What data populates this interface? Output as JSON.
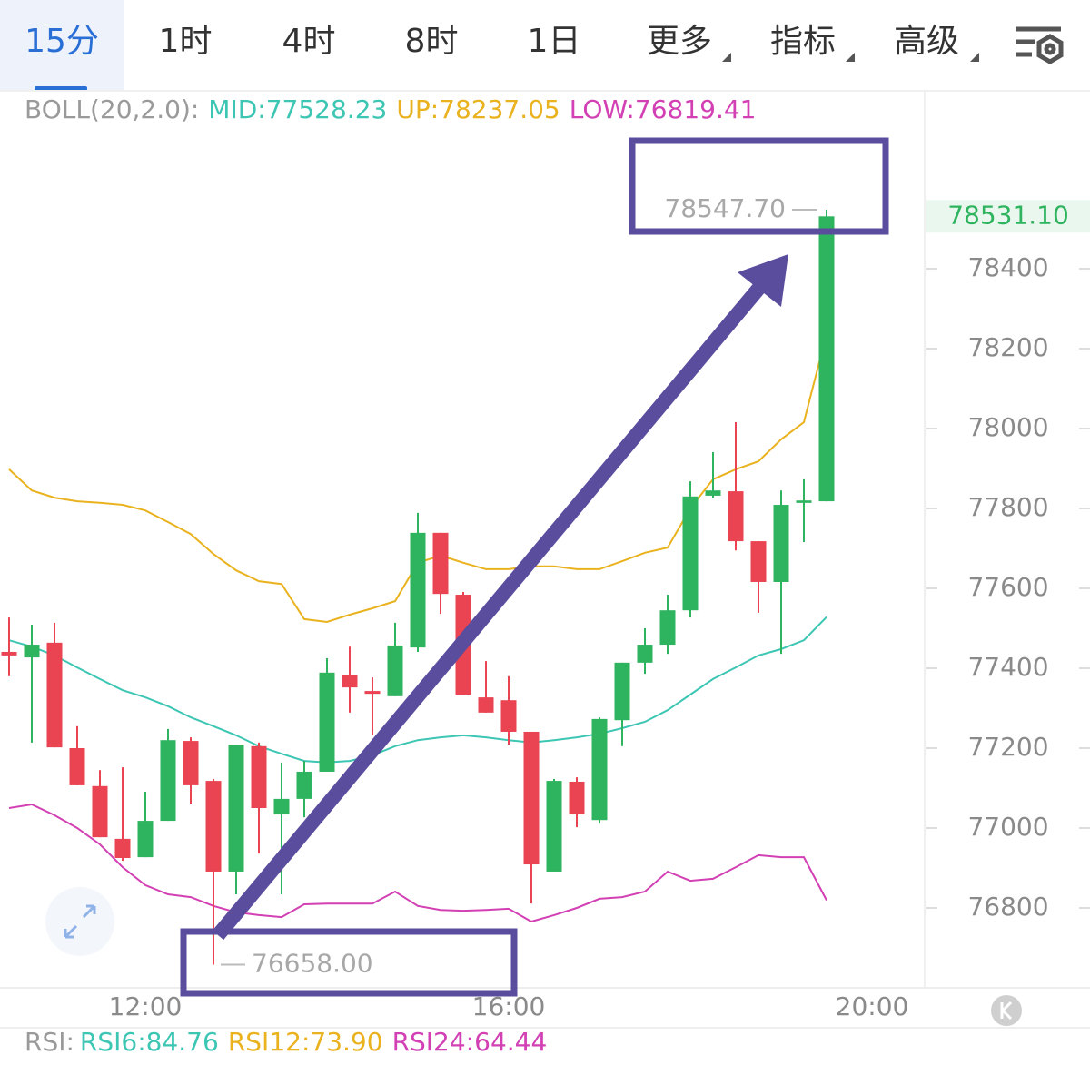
{
  "nav": {
    "tabs": [
      "15分",
      "1时",
      "4时",
      "8时",
      "1日",
      "更多",
      "指标",
      "高级"
    ],
    "active": 0
  },
  "chart_data": {
    "type": "candlestick",
    "indicator_label": "BOLL(20,2.0):",
    "x": [
      10.5,
      10.75,
      11,
      11.25,
      11.5,
      11.75,
      12,
      12.25,
      12.5,
      12.75,
      13,
      13.25,
      13.5,
      13.75,
      14,
      14.25,
      14.5,
      14.75,
      15,
      15.25,
      15.5,
      15.75,
      16,
      16.25,
      16.5,
      16.75,
      17,
      17.25,
      17.5,
      17.75,
      18,
      18.25,
      18.5,
      18.75,
      19,
      19.25,
      19.5
    ],
    "xlim": [
      10.4,
      20.58
    ],
    "xticks": [
      {
        "value": 12,
        "label": "12:00"
      },
      {
        "value": 16,
        "label": "16:00"
      },
      {
        "value": 20,
        "label": "20:00"
      }
    ],
    "ylim": [
      76600,
      78750
    ],
    "yticks": [
      76800,
      77000,
      77200,
      77400,
      77600,
      77800,
      78000,
      78200,
      78400
    ],
    "open": [
      77441,
      77427,
      77464,
      77200,
      77105,
      76973,
      76927,
      77018,
      77218,
      77118,
      76891,
      77205,
      77034,
      77073,
      77141,
      77382,
      77343,
      77330,
      77452,
      77739,
      77584,
      77327,
      77320,
      77241,
      76891,
      77116,
      77020,
      77270,
      77414,
      77459,
      77545,
      77832,
      77843,
      77718,
      77616,
      77814,
      77818
    ],
    "high": [
      77527,
      77509,
      77514,
      77255,
      77145,
      77152,
      77091,
      77248,
      77227,
      77123,
      77209,
      77214,
      77164,
      77168,
      77425,
      77454,
      77377,
      77514,
      77789,
      77739,
      77591,
      77418,
      77380,
      77241,
      77123,
      77127,
      77277,
      77414,
      77500,
      77584,
      77868,
      77941,
      78016,
      77718,
      77845,
      77873,
      78547.7
    ],
    "low": [
      77380,
      77214,
      77202,
      77107,
      76977,
      76918,
      76927,
      77018,
      77061,
      76658,
      76834,
      76936,
      76834,
      77027,
      77141,
      77289,
      77232,
      77330,
      77441,
      77536,
      77334,
      77289,
      77209,
      76811,
      76891,
      77002,
      77011,
      77205,
      77386,
      77436,
      77527,
      77827,
      77695,
      77539,
      77436,
      77716,
      77818
    ],
    "close": [
      77432,
      77459,
      77202,
      77107,
      76977,
      76925,
      77018,
      77220,
      77107,
      76891,
      77209,
      77050,
      77073,
      77141,
      77389,
      77352,
      77336,
      77457,
      77739,
      77586,
      77334,
      77289,
      77241,
      76909,
      77118,
      77034,
      77273,
      77414,
      77459,
      77545,
      77830,
      77845,
      77718,
      77616,
      77809,
      77820,
      78531.1
    ],
    "up_color": "#2eb35e",
    "down_color": "#ea4352",
    "overlays": [
      {
        "name": "MID:",
        "color": "#3cc6b3",
        "values": [
          77470,
          77454,
          77432,
          77402,
          77373,
          77345,
          77327,
          77305,
          77277,
          77255,
          77232,
          77205,
          77186,
          77168,
          77164,
          77168,
          77182,
          77205,
          77220,
          77227,
          77232,
          77227,
          77220,
          77214,
          77220,
          77227,
          77236,
          77250,
          77266,
          77295,
          77334,
          77373,
          77402,
          77432,
          77448,
          77470,
          77528.23
        ]
      },
      {
        "name": "UP:",
        "color": "#e9b21e",
        "values": [
          77898,
          77845,
          77827,
          77818,
          77814,
          77809,
          77795,
          77766,
          77736,
          77686,
          77645,
          77618,
          77611,
          77523,
          77516,
          77534,
          77550,
          77568,
          77664,
          77682,
          77664,
          77648,
          77648,
          77655,
          77655,
          77648,
          77648,
          77668,
          77689,
          77702,
          77800,
          77873,
          77898,
          77918,
          77973,
          78016,
          78237.05
        ]
      },
      {
        "name": "LOW:",
        "color": "#d240b4",
        "values": [
          77050,
          77059,
          77032,
          77000,
          76959,
          76902,
          76857,
          76834,
          76827,
          76805,
          76789,
          76782,
          76777,
          76809,
          76811,
          76811,
          76811,
          76841,
          76805,
          76795,
          76793,
          76795,
          76798,
          76766,
          76782,
          76800,
          76823,
          76827,
          76841,
          76891,
          76868,
          76873,
          76902,
          76932,
          76927,
          76927,
          76819.41
        ]
      }
    ],
    "max_label": "78547.70",
    "min_label": "76658.00",
    "last_label": "78531.10"
  },
  "rsi": {
    "title": "RSI:",
    "items": [
      {
        "name": "RSI6:",
        "value": 84.76,
        "color": "#3cc6b3"
      },
      {
        "name": "RSI12:",
        "value": 73.9,
        "value_label": "73.90",
        "color": "#e9b21e"
      },
      {
        "name": "RSI24:",
        "value": 64.44,
        "color": "#d240b4"
      }
    ]
  }
}
